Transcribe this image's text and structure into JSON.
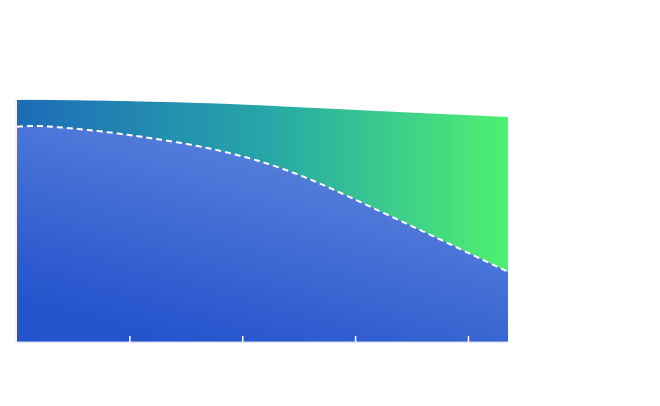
{
  "chart_data": {
    "type": "area",
    "title": "",
    "xlabel": "",
    "ylabel": "",
    "xlim": [
      0,
      4.35
    ],
    "ylim": [
      0,
      1
    ],
    "x_ticks": [
      1,
      2,
      3,
      4
    ],
    "grid": false,
    "legend": "none",
    "x": [
      0,
      0.3,
      1.0,
      1.8,
      2.5,
      3.4,
      4.35
    ],
    "series": [
      {
        "values": [
          1.0,
          1.0,
          0.995,
          0.985,
          0.97,
          0.95,
          0.93
        ],
        "style": "filled-gradient",
        "colors": [
          "#1e6bb8",
          "#4ff070"
        ]
      },
      {
        "values": [
          0.89,
          0.89,
          0.855,
          0.79,
          0.69,
          0.5,
          0.29
        ],
        "style": "dashed-boundary-filled",
        "colors": [
          "#2453cc",
          "#5a82dc"
        ]
      }
    ]
  }
}
